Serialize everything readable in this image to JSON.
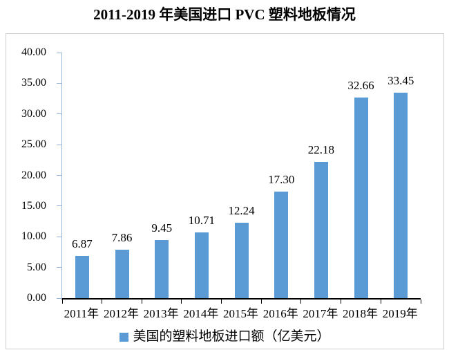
{
  "chart_data": {
    "type": "bar",
    "title": "2011-2019 年美国进口 PVC 塑料地板情况",
    "categories": [
      "2011年",
      "2012年",
      "2013年",
      "2014年",
      "2015年",
      "2016年",
      "2017年",
      "2018年",
      "2019年"
    ],
    "values": [
      6.87,
      7.86,
      9.45,
      10.71,
      12.24,
      17.3,
      22.18,
      32.66,
      33.45
    ],
    "value_labels": [
      "6.87",
      "7.86",
      "9.45",
      "10.71",
      "12.24",
      "17.30",
      "22.18",
      "32.66",
      "33.45"
    ],
    "series": [
      {
        "name": "美国的塑料地板进口额（亿美元）",
        "values": [
          6.87,
          7.86,
          9.45,
          10.71,
          12.24,
          17.3,
          22.18,
          32.66,
          33.45
        ]
      }
    ],
    "legend": [
      "美国的塑料地板进口额（亿美元）"
    ],
    "legend_position": "bottom",
    "xlabel": "",
    "ylabel": "",
    "ylim": [
      0,
      40
    ],
    "ytick_labels": [
      "40.00",
      "35.00",
      "30.00",
      "25.00",
      "20.00",
      "15.00",
      "10.00",
      "5.00",
      "0.00"
    ],
    "grid": false,
    "bar_color": "#5b9bd5",
    "y_axis_color": "#95b3d7",
    "x_axis_color": "#000000",
    "frame_border_color": "#cfcfcf",
    "text_color": "#000000"
  }
}
